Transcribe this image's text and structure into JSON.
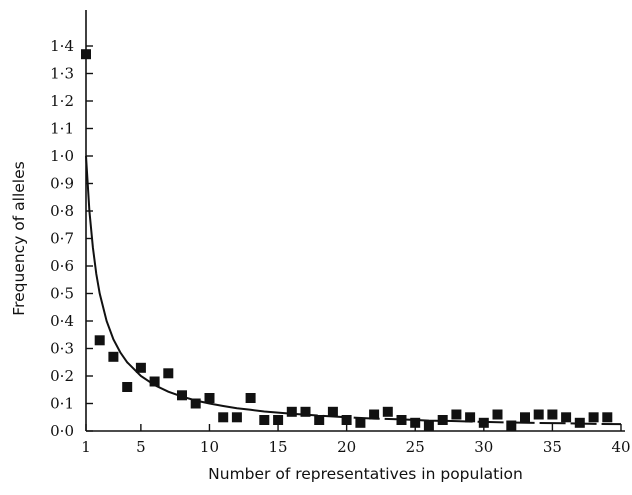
{
  "chart_data": {
    "type": "scatter",
    "title": "",
    "xlabel": "Number of representatives in population",
    "ylabel": "Frequency of alleles",
    "xlim": [
      1,
      40
    ],
    "ylim": [
      0,
      1.4
    ],
    "x_ticks": [
      1,
      5,
      10,
      15,
      20,
      25,
      30,
      35,
      40
    ],
    "x_tick_labels": [
      "1",
      "5",
      "10",
      "15",
      "20",
      "25",
      "30",
      "35",
      "40"
    ],
    "y_ticks": [
      0.0,
      0.1,
      0.2,
      0.3,
      0.4,
      0.5,
      0.6,
      0.7,
      0.8,
      0.9,
      1.0,
      1.1,
      1.2,
      1.3,
      1.4
    ],
    "y_tick_labels": [
      "0·0",
      "0·1",
      "0·2",
      "0·3",
      "0·4",
      "0·5",
      "0·6",
      "0·7",
      "0·8",
      "0·9",
      "1·0",
      "1·1",
      "1·2",
      "1·3",
      "1·4"
    ],
    "grid": false,
    "series": [
      {
        "type": "scatter",
        "marker": "square",
        "x": [
          1,
          2,
          3,
          4,
          5,
          6,
          7,
          8,
          9,
          10,
          11,
          12,
          13,
          14,
          15,
          16,
          17,
          18,
          19,
          20,
          21,
          22,
          23,
          24,
          25,
          26,
          27,
          28,
          29,
          30,
          31,
          32,
          33,
          34,
          35,
          36,
          37,
          38,
          39
        ],
        "y": [
          1.37,
          0.33,
          0.27,
          0.16,
          0.23,
          0.18,
          0.21,
          0.13,
          0.1,
          0.12,
          0.05,
          0.05,
          0.12,
          0.04,
          0.04,
          0.07,
          0.07,
          0.04,
          0.07,
          0.04,
          0.03,
          0.06,
          0.07,
          0.04,
          0.03,
          0.02,
          0.04,
          0.06,
          0.05,
          0.03,
          0.06,
          0.02,
          0.05,
          0.06,
          0.06,
          0.05,
          0.03,
          0.05,
          0.05
        ]
      },
      {
        "type": "line",
        "style": "solid-then-dashed",
        "dash_from_x": 16,
        "x": [
          1,
          1.25,
          1.5,
          1.75,
          2,
          2.5,
          3,
          3.5,
          4,
          5,
          6,
          7,
          8,
          9,
          10,
          11,
          12,
          13,
          14,
          15,
          16,
          18,
          20,
          22,
          24,
          26,
          28,
          30,
          32,
          34,
          36,
          38,
          40
        ],
        "y": [
          1.0,
          0.8,
          0.667,
          0.571,
          0.5,
          0.4,
          0.333,
          0.286,
          0.25,
          0.2,
          0.167,
          0.143,
          0.125,
          0.111,
          0.1,
          0.091,
          0.083,
          0.077,
          0.071,
          0.067,
          0.063,
          0.056,
          0.05,
          0.045,
          0.042,
          0.038,
          0.036,
          0.033,
          0.031,
          0.029,
          0.028,
          0.026,
          0.025
        ]
      }
    ]
  }
}
